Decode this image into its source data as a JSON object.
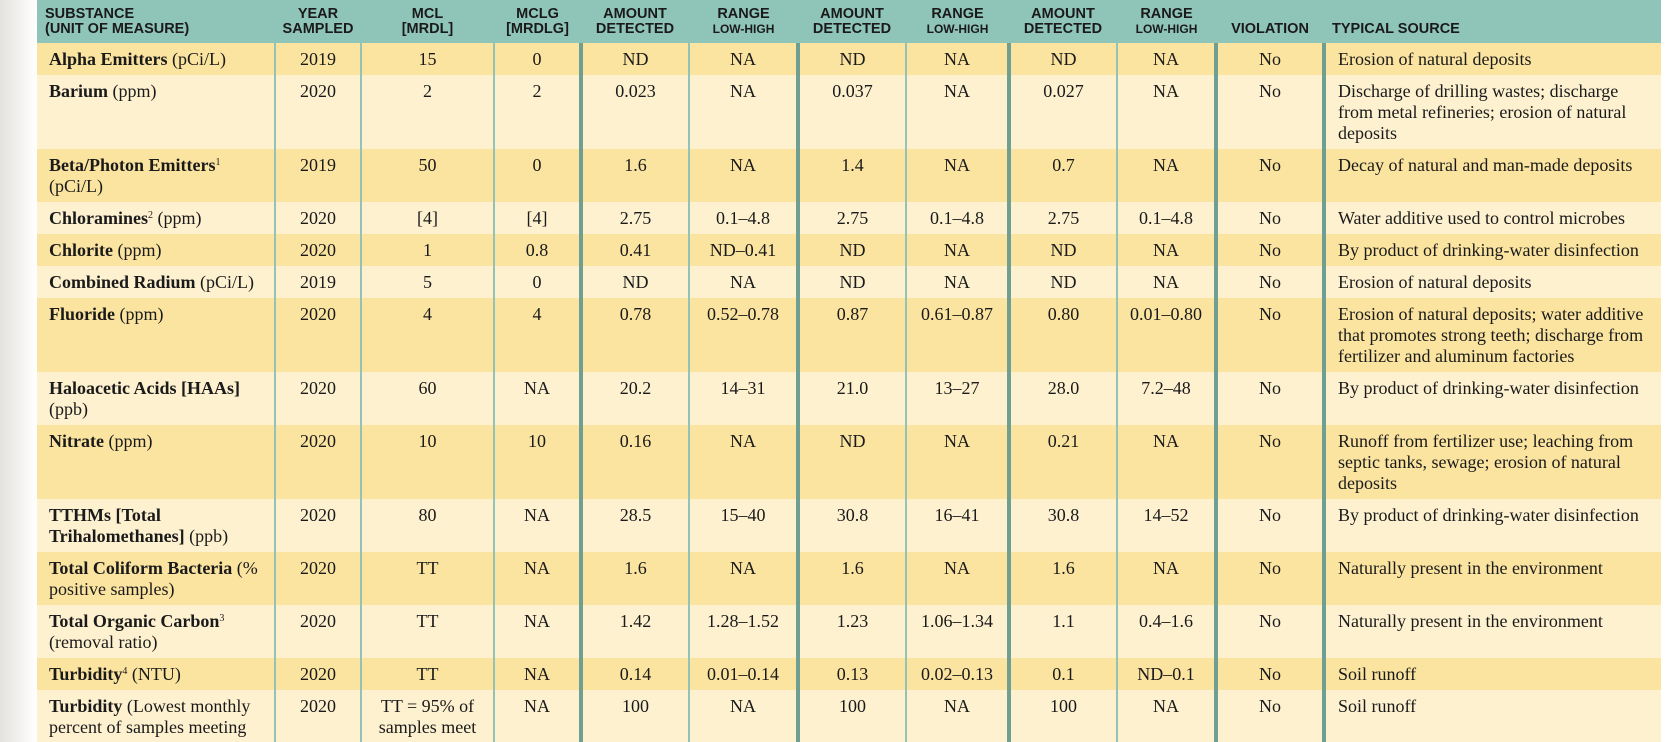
{
  "header": {
    "columns": [
      {
        "lines": [
          "SUBSTANCE",
          "(UNIT OF MEASURE)"
        ]
      },
      {
        "lines": [
          "YEAR",
          "SAMPLED"
        ]
      },
      {
        "lines": [
          "MCL",
          "[MRDL]"
        ]
      },
      {
        "lines": [
          "MCLG",
          "[MRDLG]"
        ]
      },
      {
        "lines": [
          "AMOUNT",
          "DETECTED"
        ]
      },
      {
        "lines": [
          "RANGE",
          "LOW-HIGH"
        ]
      },
      {
        "lines": [
          "AMOUNT",
          "DETECTED"
        ]
      },
      {
        "lines": [
          "RANGE",
          "LOW-HIGH"
        ]
      },
      {
        "lines": [
          "AMOUNT",
          "DETECTED"
        ]
      },
      {
        "lines": [
          "RANGE",
          "LOW-HIGH"
        ]
      },
      {
        "lines": [
          "VIOLATION"
        ]
      },
      {
        "lines": [
          "TYPICAL SOURCE"
        ]
      }
    ]
  },
  "rows": [
    {
      "substance": "Alpha Emitters",
      "unit": "(pCi/L)",
      "cells": [
        "2019",
        "15",
        "0",
        "ND",
        "NA",
        "ND",
        "NA",
        "ND",
        "NA",
        "No"
      ],
      "source": "Erosion of natural deposits"
    },
    {
      "substance": "Barium",
      "unit": "(ppm)",
      "cells": [
        "2020",
        "2",
        "2",
        "0.023",
        "NA",
        "0.037",
        "NA",
        "0.027",
        "NA",
        "No"
      ],
      "source": "Discharge of drilling wastes; discharge from metal refineries; erosion of natural deposits"
    },
    {
      "substance": "Beta/Photon Emitters",
      "footnote": "1",
      "unit": "(pCi/L)",
      "cells": [
        "2019",
        "50",
        "0",
        "1.6",
        "NA",
        "1.4",
        "NA",
        "0.7",
        "NA",
        "No"
      ],
      "source": "Decay of natural and man-made deposits"
    },
    {
      "substance": "Chloramines",
      "footnote": "2",
      "unit": "(ppm)",
      "cells": [
        "2020",
        "[4]",
        "[4]",
        "2.75",
        "0.1–4.8",
        "2.75",
        "0.1–4.8",
        "2.75",
        "0.1–4.8",
        "No"
      ],
      "source": "Water additive used to control microbes"
    },
    {
      "substance": "Chlorite",
      "unit": "(ppm)",
      "cells": [
        "2020",
        "1",
        "0.8",
        "0.41",
        "ND–0.41",
        "ND",
        "NA",
        "ND",
        "NA",
        "No"
      ],
      "source": "By product of drinking-water disinfection"
    },
    {
      "substance": "Combined Radium",
      "unit": "(pCi/L)",
      "cells": [
        "2019",
        "5",
        "0",
        "ND",
        "NA",
        "ND",
        "NA",
        "ND",
        "NA",
        "No"
      ],
      "source": "Erosion of natural deposits"
    },
    {
      "substance": "Fluoride",
      "unit": "(ppm)",
      "cells": [
        "2020",
        "4",
        "4",
        "0.78",
        "0.52–0.78",
        "0.87",
        "0.61–0.87",
        "0.80",
        "0.01–0.80",
        "No"
      ],
      "source": "Erosion of natural deposits; water additive that promotes strong teeth; discharge from fertilizer and aluminum factories"
    },
    {
      "substance": "Haloacetic Acids [HAAs]",
      "unit": "(ppb)",
      "cells": [
        "2020",
        "60",
        "NA",
        "20.2",
        "14–31",
        "21.0",
        "13–27",
        "28.0",
        "7.2–48",
        "No"
      ],
      "source": "By product of drinking-water disinfection"
    },
    {
      "substance": "Nitrate",
      "unit": "(ppm)",
      "cells": [
        "2020",
        "10",
        "10",
        "0.16",
        "NA",
        "ND",
        "NA",
        "0.21",
        "NA",
        "No"
      ],
      "source": "Runoff from fertilizer use; leaching from septic tanks, sewage; erosion of natural deposits"
    },
    {
      "substance": "TTHMs [Total Trihalomethanes]",
      "unit": "(ppb)",
      "cells": [
        "2020",
        "80",
        "NA",
        "28.5",
        "15–40",
        "30.8",
        "16–41",
        "30.8",
        "14–52",
        "No"
      ],
      "source": "By product of drinking-water disinfection"
    },
    {
      "substance": "Total Coliform Bacteria",
      "unit": "(% positive samples)",
      "cells": [
        "2020",
        "TT",
        "NA",
        "1.6",
        "NA",
        "1.6",
        "NA",
        "1.6",
        "NA",
        "No"
      ],
      "source": "Naturally present in the environment"
    },
    {
      "substance": "Total Organic Carbon",
      "footnote": "3",
      "unit": "(removal ratio)",
      "cells": [
        "2020",
        "TT",
        "NA",
        "1.42",
        "1.28–1.52",
        "1.23",
        "1.06–1.34",
        "1.1",
        "0.4–1.6",
        "No"
      ],
      "source": "Naturally present in the environment"
    },
    {
      "substance": "Turbidity",
      "footnote": "4",
      "unit": "(NTU)",
      "cells": [
        "2020",
        "TT",
        "NA",
        "0.14",
        "0.01–0.14",
        "0.13",
        "0.02–0.13",
        "0.1",
        "ND–0.1",
        "No"
      ],
      "source": "Soil runoff"
    },
    {
      "substance": "Turbidity",
      "unit": "(Lowest monthly percent of samples meeting",
      "cells": [
        "2020",
        "TT = 95% of samples meet",
        "NA",
        "100",
        "NA",
        "100",
        "NA",
        "100",
        "NA",
        "No"
      ],
      "source": "Soil runoff"
    }
  ]
}
